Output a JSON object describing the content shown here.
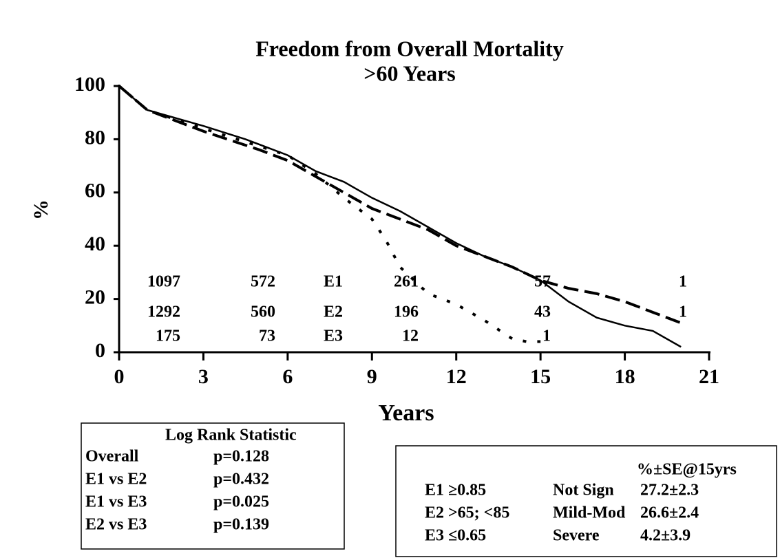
{
  "chart_data": {
    "type": "line",
    "title": "Freedom from Overall Mortality",
    "subtitle": ">60 Years",
    "x_label": "Years",
    "y_label": "%",
    "xlim": [
      0,
      21
    ],
    "ylim": [
      0,
      100
    ],
    "xticks": [
      0,
      3,
      6,
      9,
      12,
      15,
      18,
      21
    ],
    "yticks": [
      0,
      20,
      40,
      60,
      80,
      100
    ],
    "series": [
      {
        "name": "E1",
        "color": "#000000",
        "style": "solid",
        "x": [
          0,
          1,
          3,
          4.5,
          6,
          7,
          8,
          9,
          10,
          11,
          12,
          13,
          14,
          15,
          16,
          17,
          18,
          19,
          20
        ],
        "values": [
          100,
          91,
          85,
          80,
          74,
          68,
          64,
          58,
          53,
          47,
          41,
          36,
          32,
          27,
          19,
          13,
          10,
          8,
          2
        ]
      },
      {
        "name": "E2",
        "color": "#000000",
        "style": "dashed",
        "x": [
          0,
          1,
          3,
          5,
          6,
          7,
          8,
          9,
          10,
          11,
          12,
          13,
          14,
          15,
          16,
          17,
          18,
          19,
          20
        ],
        "values": [
          100,
          91,
          83,
          76,
          72,
          66,
          60,
          54,
          50,
          46,
          40,
          36,
          32,
          27,
          24,
          22,
          19,
          15,
          11
        ]
      },
      {
        "name": "E3",
        "color": "#000000",
        "style": "dotted",
        "x": [
          0,
          1,
          3,
          6,
          7,
          8,
          9,
          9.5,
          10,
          10.5,
          11,
          12,
          13,
          14,
          14.5,
          15
        ],
        "values": [
          100,
          91,
          84,
          74,
          67,
          58,
          50,
          42,
          32,
          27,
          22,
          18,
          12,
          5,
          4,
          4
        ]
      }
    ],
    "at_risk": [
      {
        "name": "E1",
        "values": [
          1097,
          572,
          261,
          57,
          1
        ]
      },
      {
        "name": "E2",
        "values": [
          1292,
          560,
          196,
          43,
          1
        ]
      },
      {
        "name": "E3",
        "values": [
          175,
          73,
          12,
          1,
          null
        ]
      }
    ]
  },
  "log_rank": {
    "title": "Log Rank Statistic",
    "rows": [
      [
        "Overall",
        "p=0.128"
      ],
      [
        "E1 vs E2",
        "p=0.432"
      ],
      [
        "E1 vs E3",
        "p=0.025"
      ],
      [
        "E2 vs E3",
        "p=0.139"
      ]
    ]
  },
  "legend_box": {
    "header": "%±SE@15yrs",
    "rows": [
      [
        "E1 ≥0.85",
        "Not Sign",
        "27.2±2.3"
      ],
      [
        "E2 >65; <85",
        "Mild-Mod",
        "26.6±2.4"
      ],
      [
        "E3 ≤0.65",
        "Severe",
        "4.2±3.9"
      ]
    ]
  }
}
